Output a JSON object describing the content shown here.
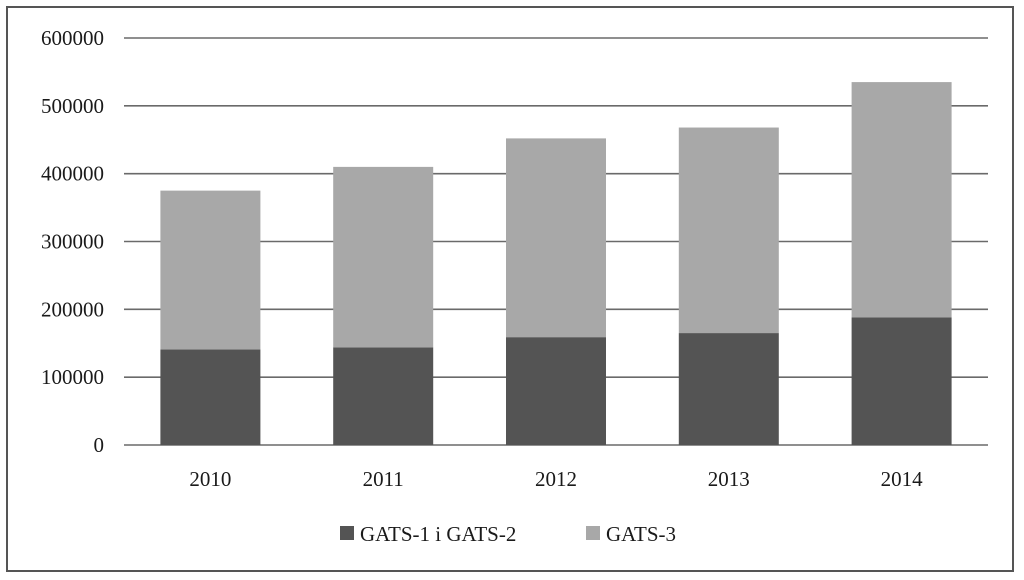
{
  "chart_data": {
    "type": "bar",
    "stacked": true,
    "title": "",
    "xlabel": "",
    "ylabel": "",
    "categories": [
      "2010",
      "2011",
      "2012",
      "2013",
      "2014"
    ],
    "series": [
      {
        "name": "GATS-1 i GATS-2",
        "color": "#545454",
        "values": [
          141000,
          144000,
          159000,
          165000,
          188000
        ]
      },
      {
        "name": "GATS-3",
        "color": "#a8a8a8",
        "values": [
          234000,
          266000,
          293000,
          303000,
          347000
        ]
      }
    ],
    "ylim": [
      0,
      600000
    ],
    "yticks": [
      "0",
      "100000",
      "200000",
      "300000",
      "400000",
      "500000",
      "600000"
    ],
    "grid": true,
    "legend_position": "bottom"
  }
}
